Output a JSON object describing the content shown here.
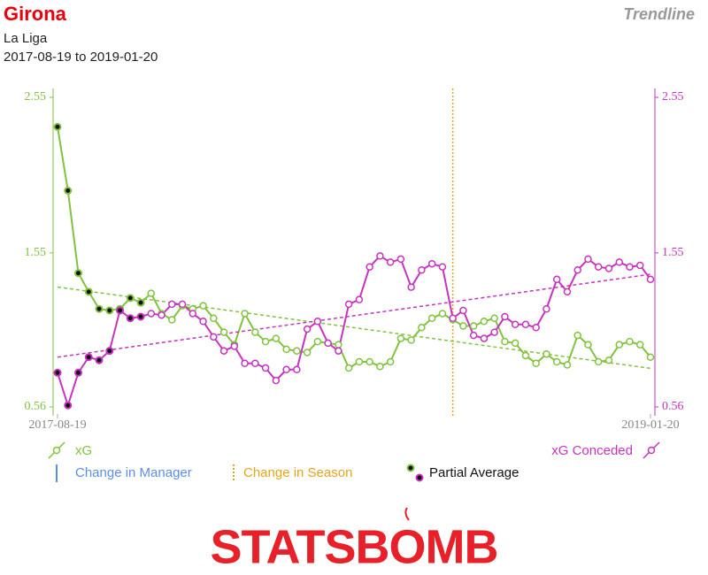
{
  "header": {
    "title": "Girona",
    "competition": "La Liga",
    "date_range": "2017-08-19 to 2019-01-20",
    "mode": "Trendline"
  },
  "chart_data": {
    "type": "line",
    "categories": [
      "2017-08-19",
      null,
      null,
      null,
      null,
      null,
      null,
      null,
      null,
      null,
      null,
      null,
      null,
      null,
      null,
      null,
      null,
      null,
      null,
      null,
      null,
      null,
      null,
      null,
      null,
      null,
      null,
      null,
      null,
      null,
      null,
      null,
      null,
      null,
      null,
      null,
      null,
      null,
      null,
      null,
      null,
      null,
      null,
      null,
      null,
      null,
      null,
      null,
      null,
      null,
      null,
      null,
      null,
      null,
      null,
      null,
      null,
      "2019-01-20"
    ],
    "series": [
      {
        "name": "xG",
        "color": "#80c33c",
        "values": [
          2.36,
          1.95,
          1.42,
          1.3,
          1.19,
          1.18,
          1.19,
          1.26,
          1.23,
          1.29,
          1.16,
          1.12,
          1.21,
          1.19,
          1.21,
          1.13,
          1.04,
          0.96,
          1.16,
          1.04,
          0.98,
          1.0,
          0.93,
          0.92,
          0.91,
          0.98,
          0.97,
          0.96,
          0.81,
          0.85,
          0.85,
          0.82,
          0.85,
          1.0,
          0.99,
          1.07,
          1.13,
          1.16,
          1.12,
          1.08,
          1.08,
          1.11,
          1.13,
          0.98,
          0.97,
          0.89,
          0.84,
          0.9,
          0.85,
          0.83,
          1.02,
          0.96,
          0.85,
          0.86,
          0.96,
          0.98,
          0.96,
          0.88
        ]
      },
      {
        "name": "xG Conceded",
        "color": "#c832c0",
        "axis": "y2",
        "values": [
          0.78,
          0.57,
          0.78,
          0.88,
          0.86,
          0.92,
          1.18,
          1.13,
          1.14,
          1.16,
          1.15,
          1.22,
          1.22,
          1.16,
          1.11,
          1.01,
          0.92,
          0.95,
          0.84,
          0.84,
          0.81,
          0.73,
          0.8,
          0.8,
          1.06,
          1.11,
          0.97,
          0.92,
          1.22,
          1.25,
          1.46,
          1.53,
          1.49,
          1.51,
          1.33,
          1.44,
          1.48,
          1.46,
          1.13,
          1.18,
          1.02,
          1.0,
          1.04,
          1.14,
          1.09,
          1.09,
          1.07,
          1.19,
          1.38,
          1.3,
          1.44,
          1.51,
          1.46,
          1.45,
          1.49,
          1.46,
          1.47,
          1.38
        ]
      }
    ],
    "ylim": [
      0.56,
      2.55
    ],
    "yticks": [
      0.56,
      1.55,
      2.55
    ],
    "y2lim": [
      0.56,
      2.55
    ],
    "y2ticks": [
      0.56,
      1.55,
      2.55
    ],
    "partial_average_points": 9,
    "season_change_index": 38,
    "trendline": true,
    "legend": {
      "manager": "Change in Manager",
      "season": "Change in Season",
      "partial": "Partial Average"
    }
  },
  "logo": "STATSBOMB"
}
